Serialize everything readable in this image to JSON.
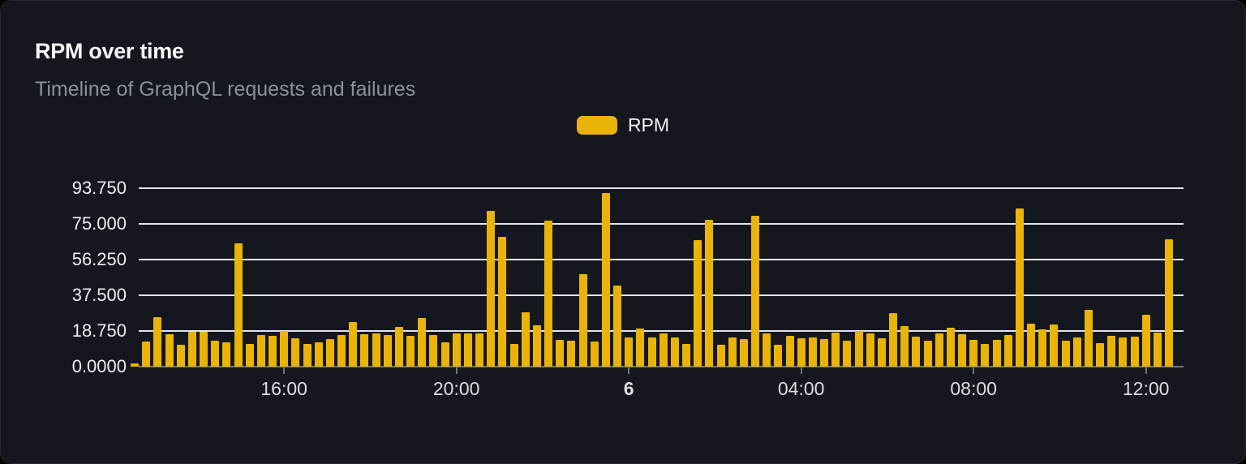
{
  "card": {
    "title": "RPM over time",
    "subtitle": "Timeline of GraphQL requests and failures"
  },
  "legend": {
    "label": "RPM",
    "color": "#eab308"
  },
  "chart_data": {
    "type": "bar",
    "title": "RPM over time",
    "series": [
      {
        "name": "RPM",
        "values": [
          1.5,
          13.3,
          25.9,
          17.1,
          11.5,
          18.2,
          18.2,
          13.6,
          12.6,
          64.9,
          11.9,
          16.8,
          16.1,
          18.8,
          15.0,
          11.9,
          12.9,
          14.7,
          16.6,
          23.5,
          17.1,
          17.6,
          16.6,
          20.8,
          16.4,
          25.7,
          16.6,
          12.9,
          17.3,
          17.3,
          17.3,
          82.0,
          68.0,
          12.1,
          28.6,
          21.8,
          76.5,
          14.1,
          13.5,
          48.5,
          13.4,
          91.0,
          42.6,
          15.5,
          20.1,
          15.5,
          17.3,
          15.2,
          11.9,
          66.5,
          77.0,
          11.7,
          15.2,
          14.3,
          79.2,
          17.3,
          11.3,
          16.4,
          14.8,
          15.5,
          14.5,
          17.9,
          13.8,
          18.6,
          17.6,
          14.9,
          28.3,
          21.5,
          15.9,
          13.8,
          17.3,
          20.4,
          16.9,
          14.2,
          11.9,
          14.1,
          16.6,
          83.0,
          22.6,
          19.4,
          22.1,
          13.6,
          15.5,
          29.8,
          12.4,
          16.2,
          15.5,
          15.9,
          27.1,
          17.9,
          67.1
        ]
      }
    ],
    "ylim": [
      0,
      93.75
    ],
    "y_ticks": [
      {
        "value": 93.75,
        "label": "93.750"
      },
      {
        "value": 75.0,
        "label": "75.000"
      },
      {
        "value": 56.25,
        "label": "56.250"
      },
      {
        "value": 37.5,
        "label": "37.500"
      },
      {
        "value": 18.75,
        "label": "18.750"
      },
      {
        "value": 0.0,
        "label": "0.0000"
      }
    ],
    "x_ticks": [
      {
        "index": 13,
        "label": "16:00",
        "bold": false
      },
      {
        "index": 28,
        "label": "20:00",
        "bold": false
      },
      {
        "index": 43,
        "label": "6",
        "bold": true
      },
      {
        "index": 58,
        "label": "04:00",
        "bold": false
      },
      {
        "index": 73,
        "label": "08:00",
        "bold": false
      },
      {
        "index": 88,
        "label": "12:00",
        "bold": false
      }
    ],
    "grid": true,
    "legend_position": "top-center",
    "bar_color": "#eab308",
    "grid_color": "#e2e5ee",
    "axis_color": "#70747c"
  }
}
